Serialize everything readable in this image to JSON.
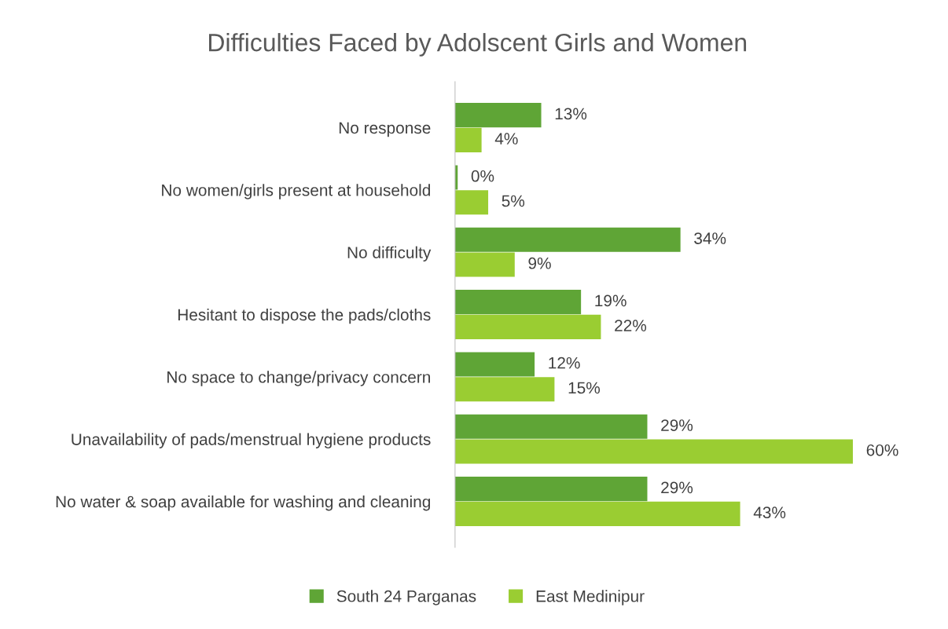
{
  "chart_data": {
    "type": "bar",
    "orientation": "horizontal",
    "title": "Difficulties Faced by Adolscent Girls and Women",
    "categories": [
      "No response",
      "No women/girls present at household",
      "No difficulty",
      "Hesitant to dispose the pads/cloths",
      "No space to change/privacy concern",
      "Unavailability of pads/menstrual hygiene products",
      "No water & soap available for washing and cleaning"
    ],
    "series": [
      {
        "name": "South 24 Parganas",
        "color": "#5fa536",
        "values": [
          13,
          0.4,
          34,
          19,
          12,
          29,
          29
        ],
        "value_labels": [
          "13%",
          "0%",
          "34%",
          "19%",
          "12%",
          "29%",
          "29%"
        ]
      },
      {
        "name": "East Medinipur",
        "color": "#9acd32",
        "values": [
          4,
          5,
          9,
          22,
          15,
          60,
          43
        ],
        "value_labels": [
          "4%",
          "5%",
          "9%",
          "22%",
          "15%",
          "60%",
          "43%"
        ]
      }
    ],
    "legend": "bottom",
    "grid": false,
    "tick_labels": "y"
  }
}
